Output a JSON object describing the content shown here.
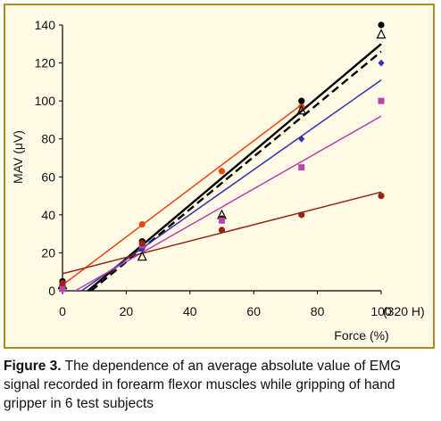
{
  "chart_data": {
    "type": "scatter",
    "xlabel": "Force (%)",
    "ylabel": "MAV (μV)",
    "x_unit_note": "(320 H)",
    "xlim": [
      0,
      100
    ],
    "ylim": [
      0,
      140
    ],
    "x_ticks": [
      "0",
      "20",
      "40",
      "60",
      "80",
      "100"
    ],
    "y_ticks": [
      "0",
      "20",
      "40",
      "60",
      "80",
      "100",
      "120",
      "140"
    ],
    "grid": false,
    "legend": "none",
    "series": [
      {
        "color": "#ee4411",
        "marker": "circle",
        "line_style": "solid",
        "x": [
          0,
          25,
          50,
          75
        ],
        "y": [
          3,
          35,
          63,
          97
        ],
        "trend": {
          "x": [
            0,
            75
          ],
          "y": [
            3,
            98
          ]
        }
      },
      {
        "color": "#000000",
        "marker": "circle",
        "line_style": "solid",
        "x": [
          0,
          25,
          50,
          75,
          100
        ],
        "y": [
          5,
          26,
          38,
          100,
          140
        ],
        "trend": {
          "x": [
            8,
            100
          ],
          "y": [
            0,
            130
          ]
        }
      },
      {
        "color": "#000000",
        "marker": "triangle-open",
        "line_style": "dashed",
        "x": [
          0,
          25,
          50,
          75,
          100
        ],
        "y": [
          3,
          18,
          40,
          95,
          135
        ],
        "trend": {
          "x": [
            9,
            100
          ],
          "y": [
            0,
            126
          ]
        }
      },
      {
        "color": "#3333aa",
        "marker": "diamond",
        "line_style": "solid",
        "x": [
          0,
          25,
          50,
          75,
          100
        ],
        "y": [
          2,
          22,
          37,
          80,
          120
        ],
        "trend": {
          "x": [
            6,
            100
          ],
          "y": [
            0,
            111
          ]
        }
      },
      {
        "color": "#bb44aa",
        "marker": "square",
        "line_style": "solid",
        "x": [
          0,
          25,
          50,
          75,
          100
        ],
        "y": [
          1,
          24,
          37,
          65,
          100
        ],
        "trend": {
          "x": [
            4,
            100
          ],
          "y": [
            0,
            92
          ]
        }
      },
      {
        "color": "#992211",
        "marker": "circle",
        "line_style": "solid",
        "x": [
          0,
          25,
          50,
          75,
          100
        ],
        "y": [
          4,
          25,
          32,
          40,
          50
        ],
        "trend": {
          "x": [
            0,
            100
          ],
          "y": [
            9,
            52
          ]
        }
      }
    ]
  },
  "caption": {
    "label": "Figure 3.",
    "text": " The dependence of an average absolute value of EMG signal recorded in forearm flexor muscles while gripping of hand gripper in 6 test subjects"
  }
}
